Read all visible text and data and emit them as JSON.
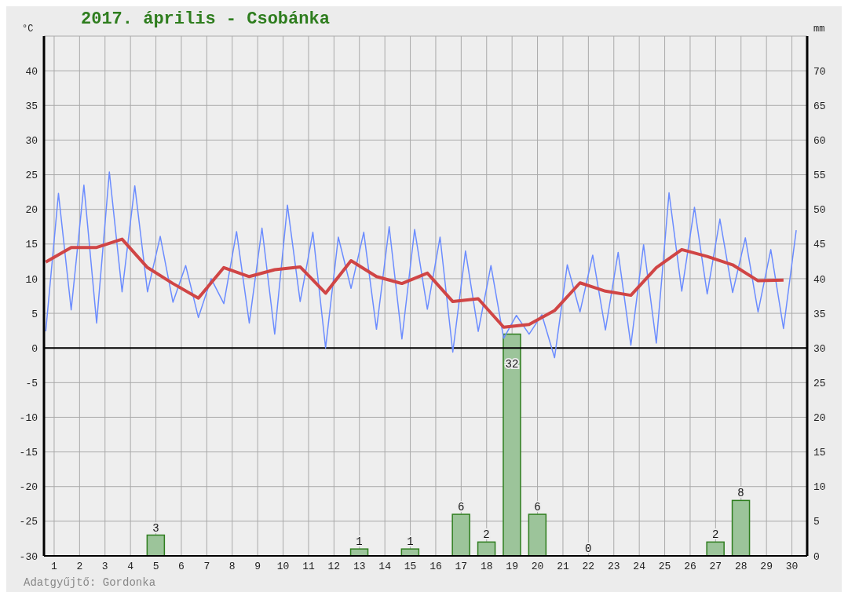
{
  "chart_data": {
    "type": "line",
    "title": "2017. április - Csobánka",
    "ylabel": "°C",
    "y2label": "mm",
    "xlim": [
      0.6,
      30.6
    ],
    "xticks": [
      1,
      2,
      3,
      4,
      5,
      6,
      7,
      8,
      9,
      10,
      11,
      12,
      13,
      14,
      15,
      16,
      17,
      18,
      19,
      20,
      21,
      22,
      23,
      24,
      25,
      26,
      27,
      28,
      29,
      30
    ],
    "ylim": [
      -30,
      45
    ],
    "yticks": [
      -30,
      -25,
      -20,
      -15,
      -10,
      -5,
      0,
      5,
      10,
      15,
      20,
      25,
      30,
      35,
      40
    ],
    "y2lim": [
      0,
      75
    ],
    "y2ticks": [
      0,
      5,
      10,
      15,
      20,
      25,
      30,
      35,
      40,
      45,
      50,
      55,
      60,
      65,
      70
    ],
    "grid": true,
    "ref_lines": [
      {
        "axis": "y",
        "value": 0,
        "color": "#000000"
      }
    ],
    "annotations": [
      "Adatgyűjtő: Gordonka"
    ],
    "series": [
      {
        "color": "#6b8cff",
        "x": [
          0.67,
          1.17,
          1.67,
          2.17,
          2.67,
          3.17,
          3.67,
          4.17,
          4.67,
          5.17,
          5.67,
          6.17,
          6.67,
          7.17,
          7.67,
          8.17,
          8.67,
          9.17,
          9.67,
          10.17,
          10.67,
          11.17,
          11.67,
          12.17,
          12.67,
          13.17,
          13.67,
          14.17,
          14.67,
          15.17,
          15.67,
          16.17,
          16.67,
          17.17,
          17.67,
          18.17,
          18.67,
          19.17,
          19.67,
          20.17,
          20.67,
          21.17,
          21.67,
          22.17,
          22.67,
          23.17,
          23.67,
          24.17,
          24.67,
          25.17,
          25.67,
          26.17,
          26.67,
          27.17,
          27.67,
          28.17,
          28.67,
          29.17,
          29.67,
          30.17
        ],
        "values": [
          2.4,
          22.3,
          5.5,
          23.5,
          3.6,
          25.4,
          8.1,
          23.4,
          8.1,
          16.1,
          6.6,
          11.9,
          4.4,
          10,
          6.4,
          16.8,
          3.6,
          17.3,
          2,
          20.6,
          6.7,
          16.7,
          0,
          16,
          8.6,
          16.7,
          2.7,
          17.5,
          1.3,
          17.1,
          5.6,
          16,
          -0.6,
          14,
          2.4,
          11.9,
          1.4,
          4.7,
          2,
          4.8,
          -1.4,
          12,
          5.2,
          13.4,
          2.6,
          13.8,
          0.4,
          14.9,
          0.7,
          22.4,
          8.2,
          20.3,
          7.8,
          18.6,
          8.0,
          15.9,
          5.2,
          14.2,
          2.8,
          17
        ]
      },
      {
        "color": "#d04545",
        "x": [
          0.67,
          1.67,
          2.67,
          3.67,
          4.67,
          5.67,
          6.67,
          7.67,
          8.67,
          9.67,
          10.67,
          11.67,
          12.67,
          13.67,
          14.67,
          15.67,
          16.67,
          17.67,
          18.67,
          19.67,
          20.67,
          21.67,
          22.67,
          23.67,
          24.67,
          25.67,
          26.67,
          27.67,
          28.67,
          29.67
        ],
        "values": [
          12.4,
          14.5,
          14.5,
          15.7,
          11.6,
          9.3,
          7.2,
          11.6,
          10.3,
          11.3,
          11.7,
          7.9,
          12.6,
          10.3,
          9.3,
          10.8,
          6.7,
          7.1,
          3.0,
          3.4,
          5.4,
          9.4,
          8.2,
          7.6,
          11.6,
          14.2,
          13.2,
          12.0,
          9.7,
          9.8
        ]
      },
      {
        "type": "bar",
        "axis": "y2",
        "color": "#9cc49a",
        "x": [
          5,
          13,
          15,
          17,
          18,
          19,
          20,
          22,
          27,
          28
        ],
        "values": [
          3,
          1,
          1,
          6,
          2,
          32,
          6,
          0,
          2,
          8
        ],
        "value_labels": [
          "3",
          "1",
          "1",
          "6",
          "2",
          "32",
          "6",
          "0",
          "2",
          "8"
        ]
      }
    ]
  }
}
